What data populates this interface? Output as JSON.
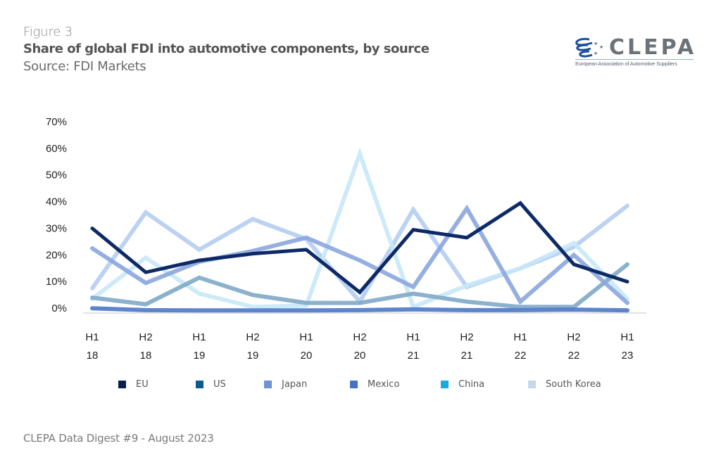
{
  "header": {
    "figure_label": "Figure 3",
    "title": "Share of global FDI into automotive components, by source",
    "source": "Source: FDI Markets"
  },
  "logo": {
    "wordmark": "CLEPA",
    "tagline": "European Association of Automotive Suppliers"
  },
  "footer": {
    "text": "CLEPA Data Digest #9 - August 2023"
  },
  "chart_data": {
    "type": "line",
    "title": "Share of global FDI into automotive components, by source",
    "xlabel": "",
    "ylabel": "",
    "ylim": [
      0,
      70
    ],
    "y_ticks": [
      "0%",
      "10%",
      "20%",
      "30%",
      "40%",
      "50%",
      "60%",
      "70%"
    ],
    "y_tick_values": [
      0,
      10,
      20,
      30,
      40,
      50,
      60,
      70
    ],
    "grid": false,
    "legend_position": "bottom",
    "categories": [
      {
        "half": "H1",
        "year": "18"
      },
      {
        "half": "H2",
        "year": "18"
      },
      {
        "half": "H1",
        "year": "19"
      },
      {
        "half": "H2",
        "year": "19"
      },
      {
        "half": "H1",
        "year": "20"
      },
      {
        "half": "H2",
        "year": "20"
      },
      {
        "half": "H1",
        "year": "21"
      },
      {
        "half": "H2",
        "year": "21"
      },
      {
        "half": "H1",
        "year": "22"
      },
      {
        "half": "H2",
        "year": "22"
      },
      {
        "half": "H1",
        "year": "23"
      }
    ],
    "series": [
      {
        "name": "South Korea",
        "color": "#b4cdf2",
        "legend_color": "#c6d6ec",
        "values": [
          8.5,
          37,
          23,
          34.5,
          27,
          3.5,
          38,
          9,
          16,
          24,
          39.5
        ]
      },
      {
        "name": "China",
        "color": "#c8e8f8",
        "legend_color": "#1aa9e0",
        "values": [
          4.5,
          20,
          6.5,
          1.5,
          2,
          59,
          1.5,
          9.5,
          16,
          25.5,
          4.5
        ]
      },
      {
        "name": "US",
        "color": "#7fa9c6",
        "legend_color": "#0d5a8f",
        "values": [
          5,
          2.5,
          12.5,
          6,
          3,
          3,
          6.5,
          3.5,
          1.5,
          1.5,
          17.5
        ]
      },
      {
        "name": "Japan",
        "color": "#8aa6de",
        "legend_color": "#6f92d6",
        "values": [
          23.5,
          10.5,
          18.5,
          22.5,
          27.5,
          19,
          9,
          38.5,
          3.5,
          21,
          3
        ]
      },
      {
        "name": "Mexico",
        "color": "#4a78c8",
        "legend_color": "#4472c4",
        "values": [
          1,
          0.3,
          0.2,
          0.2,
          0.2,
          0.3,
          0.6,
          0.3,
          0.3,
          0.5,
          0.2
        ]
      },
      {
        "name": "EU",
        "color": "#0d2a66",
        "legend_color": "#0b1f4d",
        "values": [
          31,
          14.5,
          19,
          21.5,
          23,
          7,
          30.5,
          27.5,
          40.5,
          17.5,
          11
        ]
      }
    ],
    "legend": [
      {
        "name": "EU",
        "color": "#0b1f4d"
      },
      {
        "name": "US",
        "color": "#0d5a8f"
      },
      {
        "name": "Japan",
        "color": "#6f92d6"
      },
      {
        "name": "Mexico",
        "color": "#4472c4"
      },
      {
        "name": "China",
        "color": "#1aa9e0"
      },
      {
        "name": "South Korea",
        "color": "#c6d6ec"
      }
    ]
  }
}
